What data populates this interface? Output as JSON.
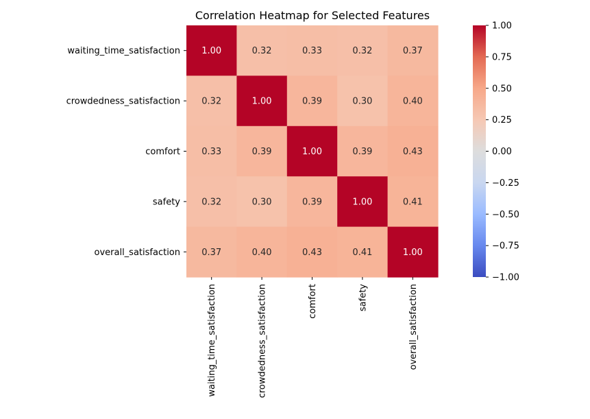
{
  "chart_data": {
    "type": "heatmap",
    "title": "Correlation Heatmap for Selected Features",
    "xlabel": "",
    "ylabel": "",
    "row_labels": [
      "waiting_time_satisfaction",
      "crowdedness_satisfaction",
      "comfort",
      "safety",
      "overall_satisfaction"
    ],
    "col_labels": [
      "waiting_time_satisfaction",
      "crowdedness_satisfaction",
      "comfort",
      "safety",
      "overall_satisfaction"
    ],
    "values": [
      [
        1.0,
        0.32,
        0.33,
        0.32,
        0.37
      ],
      [
        0.32,
        1.0,
        0.39,
        0.3,
        0.4
      ],
      [
        0.33,
        0.39,
        1.0,
        0.39,
        0.43
      ],
      [
        0.32,
        0.3,
        0.39,
        1.0,
        0.41
      ],
      [
        0.37,
        0.4,
        0.43,
        0.41,
        1.0
      ]
    ],
    "value_format": "2 decimals",
    "annotations": "shown in each cell",
    "colormap": "coolwarm",
    "colormap_stops": [
      "#3b4cc0",
      "#6788ee",
      "#9abbff",
      "#c9d7f0",
      "#dddddd",
      "#f6c8b4",
      "#f7a889",
      "#e36a53",
      "#b40426"
    ],
    "colorbar": {
      "vmin": -1.0,
      "vmax": 1.0,
      "ticks": [
        1.0,
        0.75,
        0.5,
        0.25,
        0.0,
        -0.25,
        -0.5,
        -0.75,
        -1.0
      ],
      "tick_labels": [
        "1.00",
        "0.75",
        "0.50",
        "0.25",
        "0.00",
        "−0.25",
        "−0.50",
        "−0.75",
        "−1.00"
      ],
      "placement": "right"
    },
    "grid": false,
    "x_tick_rotation": "vertical"
  }
}
